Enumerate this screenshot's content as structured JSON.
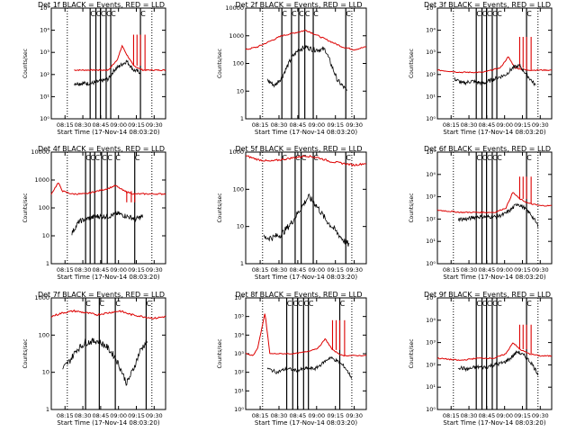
{
  "window": {
    "title": ""
  },
  "figure": {
    "time_label": "Start Time (17-Nov-14 08:03:20)",
    "ylabel": "Counts/sec",
    "flag_glyph": "C"
  },
  "chart_data": [
    {
      "id": "p1",
      "type": "line",
      "title": "Det 1f BLACK = Events, RED = LLD",
      "scale": "log",
      "ylim_exp": [
        0,
        5
      ],
      "yticks": [
        "10⁰",
        "10¹",
        "10²",
        "10³",
        "10⁴",
        "10⁵"
      ],
      "xticks": [
        "08:15",
        "08:30",
        "08:45",
        "09:00",
        "09:15",
        "09:30"
      ],
      "xlabel": "Start Time (17-Nov-14 08:03:20)",
      "ylabel": "Counts/sec",
      "dotted_x": [
        0.14,
        0.88
      ],
      "solid_x": [
        0.34,
        0.39,
        0.43,
        0.48,
        0.52,
        0.78
      ],
      "events": [
        [
          0.2,
          1.6
        ],
        [
          0.28,
          1.6
        ],
        [
          0.35,
          1.6
        ],
        [
          0.43,
          1.7
        ],
        [
          0.5,
          1.8
        ],
        [
          0.55,
          2.2
        ],
        [
          0.6,
          2.4
        ],
        [
          0.66,
          2.6
        ],
        [
          0.72,
          2.2
        ],
        [
          0.78,
          2.1
        ]
      ],
      "lld": [
        [
          0.2,
          2.2
        ],
        [
          0.3,
          2.2
        ],
        [
          0.4,
          2.2
        ],
        [
          0.5,
          2.2
        ],
        [
          0.58,
          2.7
        ],
        [
          0.62,
          3.3
        ],
        [
          0.66,
          2.9
        ],
        [
          0.72,
          2.4
        ],
        [
          0.8,
          2.2
        ],
        [
          0.9,
          2.2
        ],
        [
          1.0,
          2.2
        ]
      ],
      "spikes_x": [
        0.72,
        0.75,
        0.78,
        0.82
      ],
      "spike_height_exp": 3.8
    },
    {
      "id": "p2",
      "type": "line",
      "title": "Det 2f BLACK = Events, RED = LLD",
      "scale": "log",
      "ylim_exp": [
        0,
        4
      ],
      "yticks": [
        "1",
        "10",
        "100",
        "1000",
        "10000"
      ],
      "xticks": [
        "08:15",
        "08:30",
        "08:45",
        "09:00",
        "09:15",
        "09:30"
      ],
      "xlabel": "Start Time (17-Nov-14 08:03:20)",
      "ylabel": "Counts/sec",
      "dotted_x": [
        0.14,
        0.88
      ],
      "solid_x": [
        0.3,
        0.38,
        0.44,
        0.49,
        0.56,
        0.83
      ],
      "events": [
        [
          0.18,
          1.4
        ],
        [
          0.24,
          1.2
        ],
        [
          0.3,
          1.5
        ],
        [
          0.38,
          2.2
        ],
        [
          0.44,
          2.5
        ],
        [
          0.5,
          2.6
        ],
        [
          0.56,
          2.5
        ],
        [
          0.66,
          2.5
        ],
        [
          0.76,
          1.4
        ],
        [
          0.84,
          1.0
        ]
      ],
      "lld": [
        [
          0.0,
          2.5
        ],
        [
          0.1,
          2.6
        ],
        [
          0.2,
          2.8
        ],
        [
          0.3,
          3.0
        ],
        [
          0.4,
          3.1
        ],
        [
          0.5,
          3.2
        ],
        [
          0.6,
          3.0
        ],
        [
          0.7,
          2.8
        ],
        [
          0.8,
          2.6
        ],
        [
          0.9,
          2.5
        ],
        [
          1.0,
          2.6
        ]
      ],
      "spikes_x": [],
      "spike_height_exp": 0
    },
    {
      "id": "p3",
      "type": "line",
      "title": "Det 3f BLACK = Events, RED = LLD",
      "scale": "log",
      "ylim_exp": [
        0,
        5
      ],
      "yticks": [
        "10⁰",
        "10¹",
        "10²",
        "10³",
        "10⁴",
        "10⁵"
      ],
      "xticks": [
        "08:15",
        "08:30",
        "08:45",
        "09:00",
        "09:15",
        "09:30"
      ],
      "xlabel": "Start Time (17-Nov-14 08:03:20)",
      "ylabel": "Counts/sec",
      "dotted_x": [
        0.14,
        0.88
      ],
      "solid_x": [
        0.34,
        0.39,
        0.43,
        0.48,
        0.52,
        0.78
      ],
      "events": [
        [
          0.15,
          1.8
        ],
        [
          0.22,
          1.6
        ],
        [
          0.3,
          1.7
        ],
        [
          0.4,
          1.6
        ],
        [
          0.5,
          1.8
        ],
        [
          0.6,
          2.0
        ],
        [
          0.66,
          2.3
        ],
        [
          0.72,
          2.4
        ],
        [
          0.78,
          2.0
        ],
        [
          0.86,
          1.5
        ]
      ],
      "lld": [
        [
          0.0,
          2.2
        ],
        [
          0.2,
          2.1
        ],
        [
          0.4,
          2.1
        ],
        [
          0.55,
          2.3
        ],
        [
          0.62,
          2.8
        ],
        [
          0.68,
          2.3
        ],
        [
          0.78,
          2.2
        ],
        [
          1.0,
          2.2
        ]
      ],
      "spikes_x": [
        0.72,
        0.75,
        0.78,
        0.82
      ],
      "spike_height_exp": 3.7
    },
    {
      "id": "p4",
      "type": "line",
      "title": "Det 4f BLACK = Events, RED = LLD",
      "scale": "log",
      "ylim_exp": [
        0,
        4
      ],
      "yticks": [
        "1",
        "10",
        "100",
        "1000",
        "10000"
      ],
      "xticks": [
        "08:15",
        "08:30",
        "08:45",
        "09:00",
        "09:15",
        "09:30"
      ],
      "xlabel": "Start Time (17-Nov-14 08:03:20)",
      "ylabel": "Counts/sec",
      "dotted_x": [
        0.14,
        0.88
      ],
      "solid_x": [
        0.3,
        0.34,
        0.38,
        0.44,
        0.49,
        0.56,
        0.73
      ],
      "events": [
        [
          0.18,
          1.1
        ],
        [
          0.24,
          1.5
        ],
        [
          0.3,
          1.6
        ],
        [
          0.4,
          1.7
        ],
        [
          0.5,
          1.7
        ],
        [
          0.58,
          1.8
        ],
        [
          0.66,
          1.7
        ],
        [
          0.74,
          1.6
        ],
        [
          0.8,
          1.7
        ]
      ],
      "lld": [
        [
          0.0,
          2.5
        ],
        [
          0.06,
          2.9
        ],
        [
          0.1,
          2.6
        ],
        [
          0.18,
          2.5
        ],
        [
          0.3,
          2.5
        ],
        [
          0.4,
          2.6
        ],
        [
          0.5,
          2.7
        ],
        [
          0.56,
          2.8
        ],
        [
          0.64,
          2.6
        ],
        [
          0.72,
          2.5
        ],
        [
          0.9,
          2.5
        ],
        [
          1.0,
          2.5
        ]
      ],
      "spikes_x": [
        0.66,
        0.7,
        0.73
      ],
      "spike_height_exp": 2.2
    },
    {
      "id": "p5",
      "type": "line",
      "title": "Det 5f BLACK = Events, RED = LLD",
      "scale": "log",
      "ylim_exp": [
        0,
        3
      ],
      "yticks": [
        "1",
        "10",
        "100",
        "1000"
      ],
      "xticks": [
        "08:15",
        "08:30",
        "08:45",
        "09:00",
        "09:15",
        "09:30"
      ],
      "xlabel": "Start Time (17-Nov-14 08:03:20)",
      "ylabel": "Counts/sec",
      "dotted_x": [
        0.14,
        0.88
      ],
      "solid_x": [
        0.3,
        0.41,
        0.46,
        0.56,
        0.83
      ],
      "events": [
        [
          0.15,
          0.7
        ],
        [
          0.22,
          0.7
        ],
        [
          0.3,
          0.8
        ],
        [
          0.38,
          1.1
        ],
        [
          0.46,
          1.5
        ],
        [
          0.52,
          1.8
        ],
        [
          0.58,
          1.6
        ],
        [
          0.66,
          1.2
        ],
        [
          0.74,
          0.9
        ],
        [
          0.82,
          0.6
        ],
        [
          0.86,
          0.5
        ]
      ],
      "lld": [
        [
          0.0,
          2.9
        ],
        [
          0.1,
          2.8
        ],
        [
          0.2,
          2.75
        ],
        [
          0.3,
          2.8
        ],
        [
          0.4,
          2.85
        ],
        [
          0.5,
          2.9
        ],
        [
          0.6,
          2.85
        ],
        [
          0.7,
          2.75
        ],
        [
          0.8,
          2.7
        ],
        [
          0.9,
          2.65
        ],
        [
          1.0,
          2.7
        ]
      ],
      "spikes_x": [],
      "spike_height_exp": 0
    },
    {
      "id": "p6",
      "type": "line",
      "title": "Det 6f BLACK = Events, RED = LLD",
      "scale": "log",
      "ylim_exp": [
        0,
        5
      ],
      "yticks": [
        "10⁰",
        "10¹",
        "10²",
        "10³",
        "10⁴",
        "10⁵"
      ],
      "xticks": [
        "08:15",
        "08:30",
        "08:45",
        "09:00",
        "09:15",
        "09:30"
      ],
      "xlabel": "Start Time (17-Nov-14 08:03:20)",
      "ylabel": "Counts/sec",
      "dotted_x": [
        0.14,
        0.88
      ],
      "solid_x": [
        0.34,
        0.39,
        0.43,
        0.48,
        0.52,
        0.78
      ],
      "events": [
        [
          0.18,
          2.0
        ],
        [
          0.26,
          2.0
        ],
        [
          0.34,
          2.1
        ],
        [
          0.42,
          2.1
        ],
        [
          0.5,
          2.1
        ],
        [
          0.58,
          2.2
        ],
        [
          0.64,
          2.4
        ],
        [
          0.7,
          2.7
        ],
        [
          0.76,
          2.5
        ],
        [
          0.82,
          2.2
        ],
        [
          0.88,
          1.7
        ]
      ],
      "lld": [
        [
          0.0,
          2.4
        ],
        [
          0.2,
          2.3
        ],
        [
          0.35,
          2.3
        ],
        [
          0.5,
          2.3
        ],
        [
          0.6,
          2.5
        ],
        [
          0.66,
          3.2
        ],
        [
          0.72,
          2.9
        ],
        [
          0.8,
          2.7
        ],
        [
          0.9,
          2.6
        ],
        [
          1.0,
          2.6
        ]
      ],
      "spikes_x": [
        0.72,
        0.75,
        0.78,
        0.82
      ],
      "spike_height_exp": 3.9
    },
    {
      "id": "p7",
      "type": "line",
      "title": "Det 7f BLACK = Events, RED = LLD",
      "scale": "log",
      "ylim_exp": [
        0,
        3
      ],
      "yticks": [
        "1",
        "10",
        "100",
        "1000"
      ],
      "xticks": [
        "08:15",
        "08:30",
        "08:45",
        "09:00",
        "09:15",
        "09:30"
      ],
      "xlabel": "Start Time (17-Nov-14 08:03:20)",
      "ylabel": "Counts/sec",
      "dotted_x": [
        0.14,
        0.88
      ],
      "solid_x": [
        0.3,
        0.42,
        0.56,
        0.83
      ],
      "events": [
        [
          0.1,
          1.1
        ],
        [
          0.16,
          1.3
        ],
        [
          0.22,
          1.6
        ],
        [
          0.3,
          1.8
        ],
        [
          0.4,
          1.85
        ],
        [
          0.48,
          1.7
        ],
        [
          0.56,
          1.4
        ],
        [
          0.62,
          1.0
        ],
        [
          0.66,
          0.7
        ],
        [
          0.72,
          1.1
        ],
        [
          0.78,
          1.6
        ],
        [
          0.84,
          1.85
        ]
      ],
      "lld": [
        [
          0.0,
          2.5
        ],
        [
          0.1,
          2.6
        ],
        [
          0.2,
          2.65
        ],
        [
          0.3,
          2.6
        ],
        [
          0.4,
          2.55
        ],
        [
          0.5,
          2.6
        ],
        [
          0.6,
          2.65
        ],
        [
          0.7,
          2.55
        ],
        [
          0.8,
          2.5
        ],
        [
          0.9,
          2.45
        ],
        [
          1.0,
          2.5
        ]
      ],
      "spikes_x": [],
      "spike_height_exp": 0
    },
    {
      "id": "p8",
      "type": "line",
      "title": "Det 8f BLACK = Events, RED = LLD",
      "scale": "log",
      "ylim_exp": [
        0,
        6
      ],
      "yticks": [
        "10⁰",
        "10¹",
        "10²",
        "10³",
        "10⁴",
        "10⁵",
        "10⁶"
      ],
      "xticks": [
        "08:15",
        "08:30",
        "08:45",
        "09:00",
        "09:15",
        "09:30"
      ],
      "xlabel": "Start Time (17-Nov-14 08:03:20)",
      "ylabel": "Counts/sec",
      "dotted_x": [
        0.14,
        0.88
      ],
      "solid_x": [
        0.34,
        0.39,
        0.43,
        0.48,
        0.52,
        0.78
      ],
      "events": [
        [
          0.18,
          2.2
        ],
        [
          0.26,
          2.0
        ],
        [
          0.34,
          2.2
        ],
        [
          0.42,
          2.1
        ],
        [
          0.5,
          2.2
        ],
        [
          0.58,
          2.2
        ],
        [
          0.64,
          2.5
        ],
        [
          0.7,
          2.8
        ],
        [
          0.76,
          2.6
        ],
        [
          0.82,
          2.3
        ],
        [
          0.88,
          1.7
        ]
      ],
      "lld": [
        [
          0.0,
          3.0
        ],
        [
          0.06,
          2.9
        ],
        [
          0.1,
          3.3
        ],
        [
          0.16,
          5.2
        ],
        [
          0.2,
          3.0
        ],
        [
          0.3,
          3.0
        ],
        [
          0.4,
          3.0
        ],
        [
          0.5,
          3.1
        ],
        [
          0.6,
          3.3
        ],
        [
          0.66,
          3.8
        ],
        [
          0.72,
          3.2
        ],
        [
          0.8,
          2.9
        ],
        [
          0.9,
          2.9
        ],
        [
          1.0,
          2.9
        ]
      ],
      "spikes_x": [
        0.72,
        0.75,
        0.78,
        0.82
      ],
      "spike_height_exp": 4.8
    },
    {
      "id": "p9",
      "type": "line",
      "title": "Det 9f BLACK = Events, RED = LLD",
      "scale": "log",
      "ylim_exp": [
        0,
        5
      ],
      "yticks": [
        "10⁰",
        "10¹",
        "10²",
        "10³",
        "10⁴",
        "10⁵"
      ],
      "xticks": [
        "08:15",
        "08:30",
        "08:45",
        "09:00",
        "09:15",
        "09:30"
      ],
      "xlabel": "Start Time (17-Nov-14 08:03:20)",
      "ylabel": "Counts/sec",
      "dotted_x": [
        0.14,
        0.88
      ],
      "solid_x": [
        0.34,
        0.39,
        0.43,
        0.48,
        0.52,
        0.78
      ],
      "events": [
        [
          0.18,
          1.9
        ],
        [
          0.26,
          1.8
        ],
        [
          0.34,
          1.9
        ],
        [
          0.42,
          1.9
        ],
        [
          0.5,
          2.0
        ],
        [
          0.58,
          2.1
        ],
        [
          0.64,
          2.3
        ],
        [
          0.7,
          2.6
        ],
        [
          0.76,
          2.4
        ],
        [
          0.82,
          2.1
        ],
        [
          0.88,
          1.6
        ]
      ],
      "lld": [
        [
          0.0,
          2.3
        ],
        [
          0.2,
          2.2
        ],
        [
          0.35,
          2.3
        ],
        [
          0.5,
          2.3
        ],
        [
          0.6,
          2.5
        ],
        [
          0.66,
          3.0
        ],
        [
          0.72,
          2.7
        ],
        [
          0.8,
          2.5
        ],
        [
          0.9,
          2.4
        ],
        [
          1.0,
          2.4
        ]
      ],
      "spikes_x": [
        0.72,
        0.75,
        0.78,
        0.82
      ],
      "spike_height_exp": 3.8
    }
  ]
}
